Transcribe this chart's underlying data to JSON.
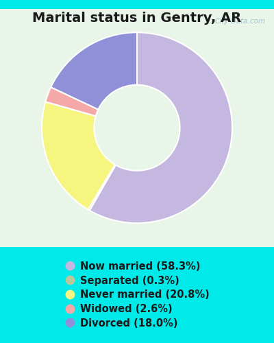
{
  "title": "Marital status in Gentry, AR",
  "title_fontsize": 14,
  "title_fontweight": "bold",
  "bg_outer": "#00eaea",
  "bg_inner_top": "#e8f5e8",
  "bg_inner_bottom": "#c8e8d8",
  "watermark": "City-Data.com",
  "slices": [
    {
      "label": "Now married (58.3%)",
      "value": 58.3,
      "color": "#c5b8e0"
    },
    {
      "label": "Separated (0.3%)",
      "value": 0.3,
      "color": "#b8c89a"
    },
    {
      "label": "Never married (20.8%)",
      "value": 20.8,
      "color": "#f5f580"
    },
    {
      "label": "Widowed (2.6%)",
      "value": 2.6,
      "color": "#f4a8a8"
    },
    {
      "label": "Divorced (18.0%)",
      "value": 18.0,
      "color": "#9090d8"
    }
  ],
  "legend_fontsize": 10.5,
  "donut_width": 0.55,
  "startangle": 90
}
